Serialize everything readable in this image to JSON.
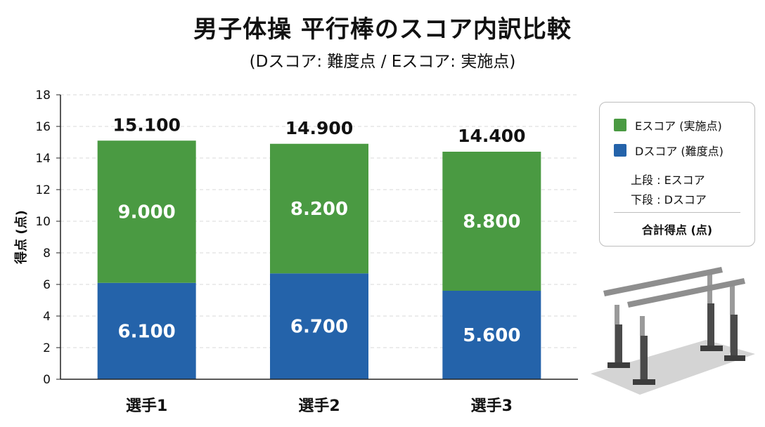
{
  "title": "男子体操 平行棒のスコア内訳比較",
  "subtitle": "(Dスコア: 難度点 / Eスコア: 実施点)",
  "legend": {
    "e_label": "Eスコア (実施点)",
    "d_label": "Dスコア (難度点)",
    "note_upper": "上段 : Eスコア",
    "note_lower": "下段 : Dスコア",
    "total_label": "合計得点 (点)"
  },
  "colors": {
    "e_score": "#4a9a42",
    "d_score": "#2463aa",
    "grid": "#d9d9d9",
    "illustration": "parallel-bars-icon"
  },
  "chart_data": {
    "type": "bar",
    "stacked": true,
    "categories": [
      "選手1",
      "選手2",
      "選手3"
    ],
    "series": [
      {
        "name": "Dスコア (難度点)",
        "values": [
          6.1,
          6.7,
          5.6
        ],
        "labels": [
          "6.100",
          "6.700",
          "5.600"
        ]
      },
      {
        "name": "Eスコア (実施点)",
        "values": [
          9.0,
          8.2,
          8.8
        ],
        "labels": [
          "9.000",
          "8.200",
          "8.800"
        ]
      }
    ],
    "totals": [
      15.1,
      14.9,
      14.4
    ],
    "total_labels": [
      "15.100",
      "14.900",
      "14.400"
    ],
    "ylabel": "得点 (点)",
    "ylim": [
      0,
      18
    ],
    "yticks": [
      0,
      2,
      4,
      6,
      8,
      10,
      12,
      14,
      16,
      18
    ],
    "grid": true,
    "legend_position": "right"
  }
}
